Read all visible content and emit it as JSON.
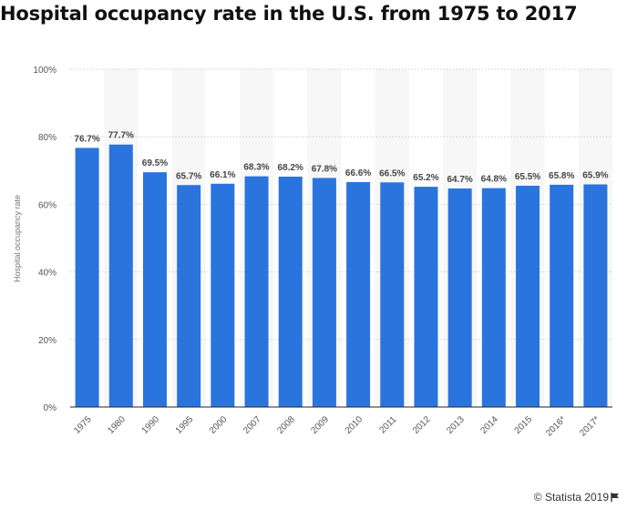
{
  "title": "Hospital occupancy rate in the U.S. from 1975 to 2017",
  "credit": "© Statista 2019",
  "colors": {
    "bar": "#2a74de",
    "band": "#f7f7f7",
    "grid": "#cfcfcf",
    "axis": "#222222"
  },
  "chart_data": {
    "type": "bar",
    "title": "Hospital occupancy rate in the U.S. from 1975 to 2017",
    "xlabel": "",
    "ylabel": "Hospital occupancy rate",
    "ylim": [
      0,
      100
    ],
    "yticks": [
      0,
      20,
      40,
      60,
      80,
      100
    ],
    "ytick_labels": [
      "0%",
      "20%",
      "40%",
      "60%",
      "80%",
      "100%"
    ],
    "categories": [
      "1975",
      "1980",
      "1990",
      "1995",
      "2000",
      "2007",
      "2008",
      "2009",
      "2010",
      "2011",
      "2012",
      "2013",
      "2014",
      "2015",
      "2016*",
      "2017*"
    ],
    "values": [
      76.7,
      77.7,
      69.5,
      65.7,
      66.1,
      68.3,
      68.2,
      67.8,
      66.6,
      66.5,
      65.2,
      64.7,
      64.8,
      65.5,
      65.8,
      65.9
    ],
    "value_labels": [
      "76.7%",
      "77.7%",
      "69.5%",
      "65.7%",
      "66.1%",
      "68.3%",
      "68.2%",
      "67.8%",
      "66.6%",
      "66.5%",
      "65.2%",
      "64.7%",
      "64.8%",
      "65.5%",
      "65.8%",
      "65.9%"
    ],
    "grid": true,
    "legend": "none"
  }
}
